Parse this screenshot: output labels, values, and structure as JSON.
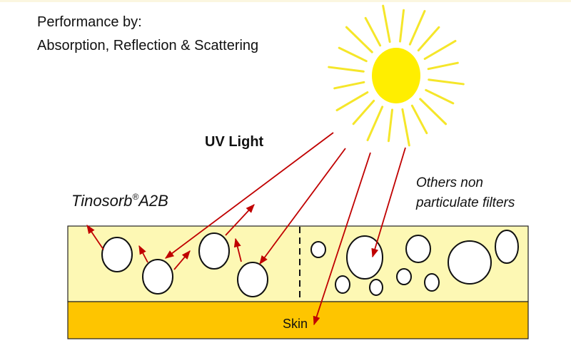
{
  "title_line1": "Performance by:",
  "title_line2": "Absorption, Reflection & Scattering",
  "uv_label": "UV Light",
  "left_label": "Tinosorb",
  "left_label_reg": "®",
  "left_label_suffix": "A2B",
  "right_label_line1": "Others non",
  "right_label_line2": "particulate filters",
  "skin_label": "Skin",
  "colors": {
    "sun": "#ffee00",
    "rays": "#f5e62a",
    "film": "#fdf8b4",
    "skin": "#fec500",
    "arrow": "#c00000"
  }
}
